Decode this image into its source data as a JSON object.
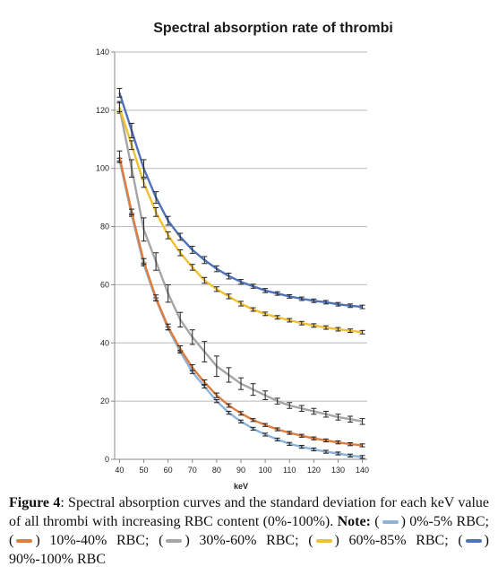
{
  "chart_data": {
    "type": "line",
    "title": "Spectral absorption rate of thrombi",
    "xlabel": "keV",
    "ylabel": "",
    "xlim": [
      38,
      142
    ],
    "ylim": [
      0,
      140
    ],
    "x_ticks": [
      40,
      50,
      60,
      70,
      80,
      90,
      100,
      110,
      120,
      130,
      140
    ],
    "y_ticks": [
      0,
      20,
      40,
      60,
      80,
      100,
      120,
      140
    ],
    "grid": "horizontal",
    "legend": "none",
    "x": [
      40,
      45,
      50,
      55,
      60,
      65,
      70,
      75,
      80,
      85,
      90,
      95,
      100,
      105,
      110,
      115,
      120,
      125,
      130,
      135,
      140
    ],
    "series": [
      {
        "name": "0%-5% RBC",
        "color": "#8db3d9",
        "values": [
          103,
          84,
          67,
          55,
          45,
          37,
          30,
          25,
          20,
          16,
          13,
          10.5,
          8.5,
          6.8,
          5.3,
          4.3,
          3.4,
          2.6,
          2.0,
          1.3,
          0.8
        ],
        "errors": [
          0.5,
          0.5,
          0.5,
          0.5,
          0.5,
          0.5,
          0.5,
          0.5,
          0.5,
          0.5,
          0.5,
          0.5,
          0.5,
          0.5,
          0.5,
          0.5,
          0.5,
          0.5,
          0.5,
          0.5,
          0.5
        ]
      },
      {
        "name": "10%-40% RBC",
        "color": "#e07d3c",
        "values": [
          104,
          85,
          68,
          55.5,
          45.5,
          38,
          31.5,
          26.5,
          22,
          18.5,
          15.8,
          13.5,
          11.8,
          10.3,
          9.1,
          8.1,
          7.2,
          6.5,
          5.8,
          5.2,
          4.8
        ],
        "errors": [
          2,
          1,
          1,
          1,
          1,
          1,
          1,
          0.8,
          0.8,
          0.6,
          0.6,
          0.5,
          0.5,
          0.5,
          0.5,
          0.5,
          0.5,
          0.5,
          0.5,
          0.5,
          0.5
        ]
      },
      {
        "name": "30%-60% RBC",
        "color": "#a5a5a5",
        "values": [
          121,
          100,
          79,
          68,
          57,
          48,
          42,
          37,
          32,
          29,
          26,
          24,
          22,
          20,
          18.5,
          17.5,
          16.5,
          15.5,
          14.5,
          13.8,
          13
        ],
        "errors": [
          2,
          3,
          4,
          3,
          3,
          2.5,
          2.5,
          3.5,
          3.5,
          2.5,
          2,
          2,
          1.5,
          1,
          1,
          1,
          1,
          1,
          1,
          1,
          1
        ]
      },
      {
        "name": "60%-85% RBC",
        "color": "#f2c12e",
        "values": [
          121,
          108,
          95,
          85,
          77,
          71,
          66,
          61.5,
          58.5,
          56,
          53.5,
          51.5,
          50,
          48.8,
          47.8,
          46.8,
          46,
          45.3,
          44.7,
          44.2,
          43.7
        ],
        "errors": [
          1.5,
          1.5,
          1.5,
          1.5,
          1.2,
          1,
          1,
          1,
          0.8,
          0.8,
          0.8,
          0.6,
          0.6,
          0.6,
          0.6,
          0.6,
          0.6,
          0.6,
          0.6,
          0.6,
          0.6
        ]
      },
      {
        "name": "90%-100% RBC",
        "color": "#4f72b8",
        "values": [
          126,
          113,
          100,
          90,
          82,
          76.5,
          72,
          68.5,
          65.5,
          63,
          61,
          59.5,
          58,
          57,
          56,
          55.2,
          54.5,
          54,
          53.3,
          52.8,
          52.4
        ],
        "errors": [
          1.5,
          2.5,
          3,
          2,
          1.5,
          1.2,
          1.2,
          1.2,
          1,
          1,
          0.8,
          0.7,
          0.7,
          0.6,
          0.6,
          0.6,
          0.6,
          0.6,
          0.6,
          0.6,
          0.6
        ]
      }
    ]
  },
  "caption": {
    "figure_label": "Figure 4",
    "text": ": Spectral absorption curves and the standard deviation for each keV value of all thrombi with increasing RBC content (0%-100%). ",
    "note_label": "Note:",
    "items": [
      {
        "label": ") 0%-5% RBC; ",
        "color": "#8db3d9"
      },
      {
        "label": ") 10%-40% RBC; ",
        "color": "#e07d3c"
      },
      {
        "label": ") 30%-60% RBC; ",
        "color": "#a5a5a5"
      },
      {
        "label": ") 60%-85% RBC; ",
        "color": "#f2c12e"
      },
      {
        "label": ") 90%-100% RBC",
        "color": "#4f72b8"
      }
    ]
  }
}
